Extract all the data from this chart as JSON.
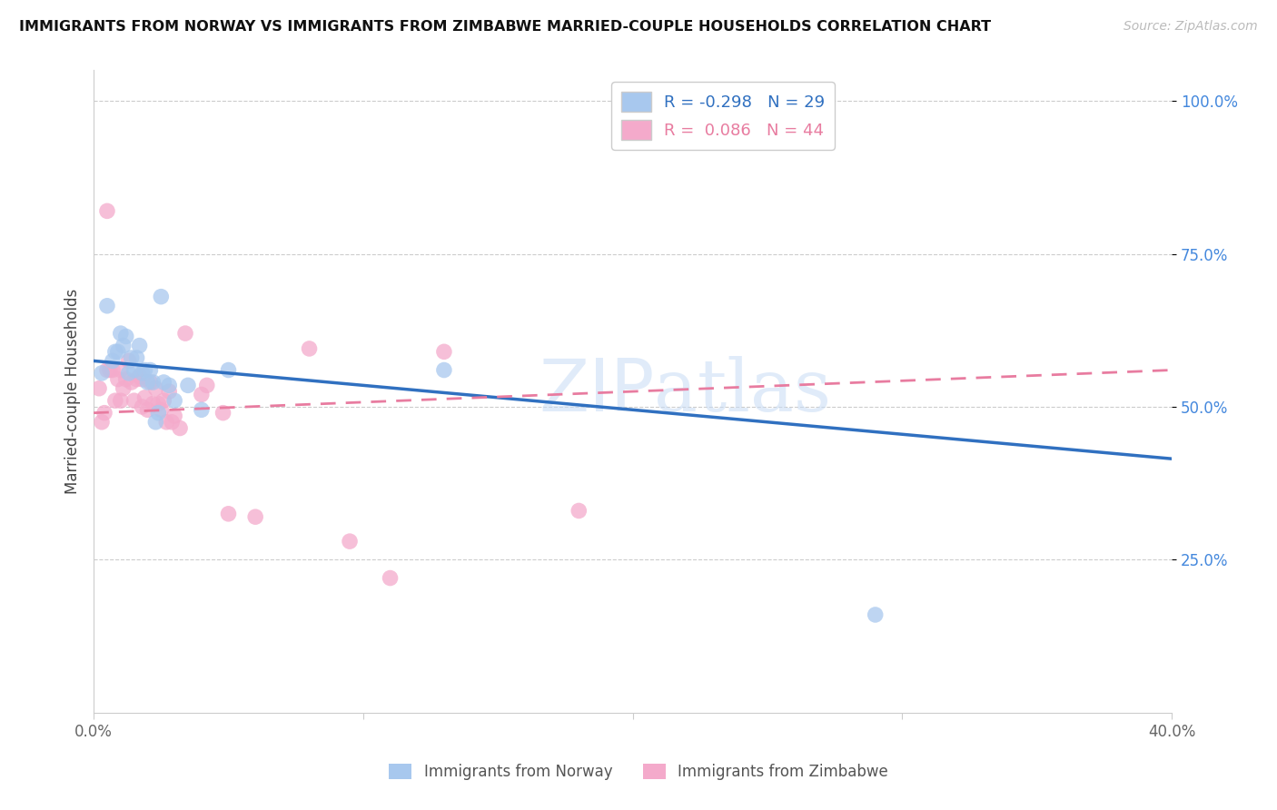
{
  "title": "IMMIGRANTS FROM NORWAY VS IMMIGRANTS FROM ZIMBABWE MARRIED-COUPLE HOUSEHOLDS CORRELATION CHART",
  "source": "Source: ZipAtlas.com",
  "ylabel": "Married-couple Households",
  "xlim": [
    0.0,
    0.4
  ],
  "ylim": [
    0.0,
    1.05
  ],
  "xtick_labels": [
    "0.0%",
    "",
    "",
    "",
    "40.0%"
  ],
  "xtick_vals": [
    0.0,
    0.1,
    0.2,
    0.3,
    0.4
  ],
  "ytick_labels": [
    "25.0%",
    "50.0%",
    "75.0%",
    "100.0%"
  ],
  "ytick_vals": [
    0.25,
    0.5,
    0.75,
    1.0
  ],
  "norway_color": "#A8C8EE",
  "zimbabwe_color": "#F4AACB",
  "norway_R": -0.298,
  "norway_N": 29,
  "zimbabwe_R": 0.086,
  "zimbabwe_N": 44,
  "norway_line_color": "#3070C0",
  "zimbabwe_line_color": "#E87CA0",
  "watermark_part1": "ZIP",
  "watermark_part2": "atlas",
  "norway_scatter_x": [
    0.003,
    0.005,
    0.007,
    0.008,
    0.009,
    0.01,
    0.011,
    0.012,
    0.013,
    0.014,
    0.015,
    0.016,
    0.017,
    0.018,
    0.019,
    0.02,
    0.021,
    0.022,
    0.023,
    0.024,
    0.025,
    0.026,
    0.028,
    0.03,
    0.035,
    0.04,
    0.05,
    0.13,
    0.29
  ],
  "norway_scatter_y": [
    0.555,
    0.665,
    0.575,
    0.59,
    0.59,
    0.62,
    0.6,
    0.615,
    0.555,
    0.58,
    0.56,
    0.58,
    0.6,
    0.555,
    0.56,
    0.54,
    0.56,
    0.54,
    0.475,
    0.49,
    0.68,
    0.54,
    0.535,
    0.51,
    0.535,
    0.495,
    0.56,
    0.56,
    0.16
  ],
  "zimbabwe_scatter_x": [
    0.002,
    0.003,
    0.004,
    0.005,
    0.005,
    0.006,
    0.007,
    0.008,
    0.009,
    0.01,
    0.01,
    0.011,
    0.012,
    0.013,
    0.014,
    0.015,
    0.016,
    0.017,
    0.018,
    0.018,
    0.019,
    0.02,
    0.021,
    0.022,
    0.023,
    0.024,
    0.025,
    0.026,
    0.027,
    0.028,
    0.029,
    0.03,
    0.032,
    0.034,
    0.04,
    0.042,
    0.048,
    0.05,
    0.06,
    0.08,
    0.095,
    0.11,
    0.13,
    0.18
  ],
  "zimbabwe_scatter_y": [
    0.53,
    0.475,
    0.49,
    0.82,
    0.56,
    0.56,
    0.56,
    0.51,
    0.545,
    0.56,
    0.51,
    0.53,
    0.545,
    0.575,
    0.54,
    0.51,
    0.545,
    0.55,
    0.5,
    0.545,
    0.515,
    0.495,
    0.54,
    0.505,
    0.53,
    0.505,
    0.495,
    0.51,
    0.475,
    0.525,
    0.475,
    0.485,
    0.465,
    0.62,
    0.52,
    0.535,
    0.49,
    0.325,
    0.32,
    0.595,
    0.28,
    0.22,
    0.59,
    0.33
  ],
  "norway_line_x0": 0.0,
  "norway_line_y0": 0.575,
  "norway_line_x1": 0.4,
  "norway_line_y1": 0.415,
  "zimbabwe_line_x0": 0.0,
  "zimbabwe_line_y0": 0.49,
  "zimbabwe_line_x1": 0.4,
  "zimbabwe_line_y1": 0.56
}
